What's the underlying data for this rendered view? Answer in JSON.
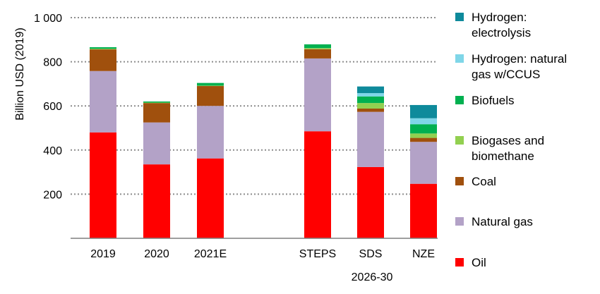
{
  "chart_data": {
    "type": "bar",
    "stacked": true,
    "title": "",
    "ylabel": "Billion USD (2019)",
    "xlabel": "",
    "ylim": [
      0,
      1000
    ],
    "yticks": [
      200,
      400,
      600,
      800,
      1000
    ],
    "ytick_labels": [
      "200",
      "400",
      "600",
      "800",
      "1 000"
    ],
    "grid": true,
    "legend_position": "right",
    "group_label": "2026-30",
    "categories": [
      "2019",
      "2020",
      "2021E",
      "STEPS",
      "SDS",
      "NZE"
    ],
    "series": [
      {
        "name": "Oil",
        "color": "#ff0000",
        "values": [
          480,
          335,
          362,
          485,
          323,
          247
        ]
      },
      {
        "name": "Natural gas",
        "color": "#b3a2c7",
        "values": [
          278,
          190,
          238,
          330,
          250,
          190
        ]
      },
      {
        "name": "Coal",
        "color": "#a0500d",
        "values": [
          98,
          88,
          90,
          42,
          15,
          18
        ]
      },
      {
        "name": "Biogases and biomethane",
        "color": "#92d050",
        "values": [
          3,
          2,
          2,
          5,
          25,
          20
        ]
      },
      {
        "name": "Biofuels",
        "color": "#00b050",
        "values": [
          7,
          5,
          12,
          17,
          30,
          42
        ]
      },
      {
        "name": "Hydrogen: natural gas w/CCUS",
        "color": "#7fd6e8",
        "values": [
          0,
          0,
          0,
          0,
          15,
          27
        ]
      },
      {
        "name": "Hydrogen: electrolysis",
        "color": "#0e8a9b",
        "values": [
          0,
          0,
          0,
          0,
          30,
          60
        ]
      }
    ],
    "legend": [
      "Hydrogen: electrolysis",
      "Hydrogen: natural gas w/CCUS",
      "Biofuels",
      "Biogases and biomethane",
      "Coal",
      "Natural gas",
      "Oil"
    ]
  }
}
